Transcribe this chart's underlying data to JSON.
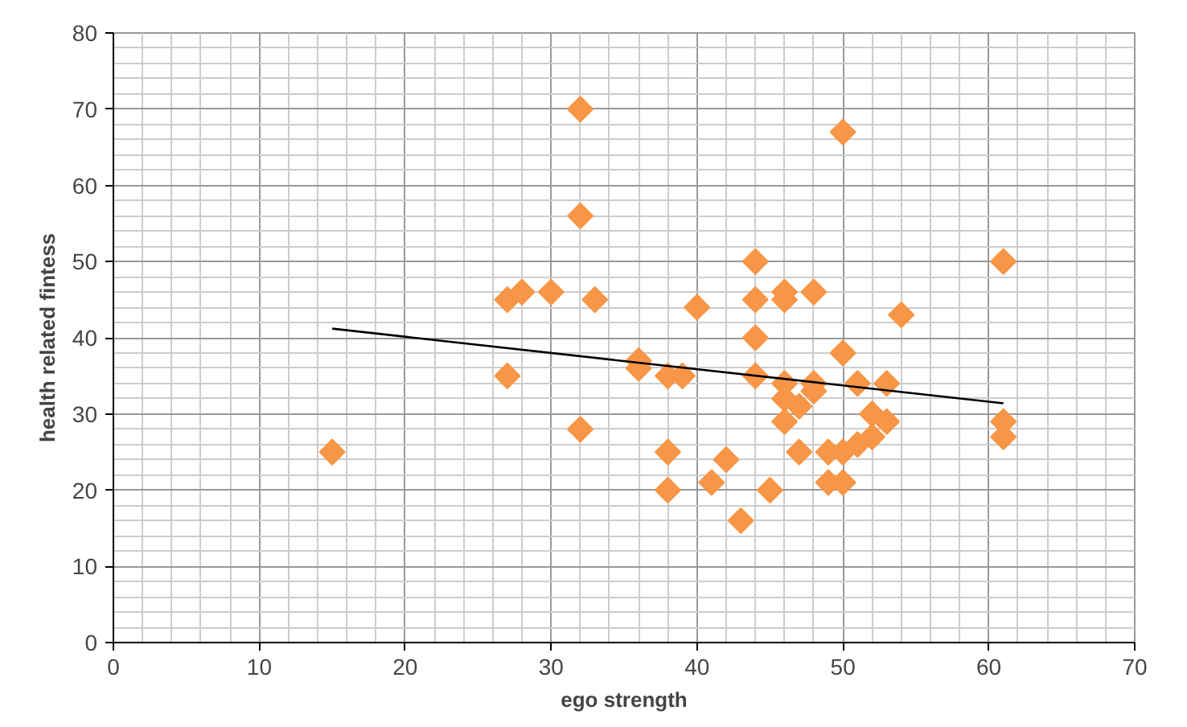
{
  "chart_data": {
    "type": "scatter",
    "xlabel": "ego strength",
    "ylabel": "health related fintess",
    "xlim": [
      0,
      70
    ],
    "ylim": [
      0,
      80
    ],
    "xticks": [
      0,
      10,
      20,
      30,
      40,
      50,
      60,
      70
    ],
    "yticks": [
      0,
      10,
      20,
      30,
      40,
      50,
      60,
      70,
      80
    ],
    "grid": true,
    "series": [
      {
        "color": "#f79646",
        "marker": "diamond",
        "x": [
          15,
          27,
          27,
          28,
          30,
          32,
          32,
          32,
          33,
          36,
          36,
          38,
          38,
          38,
          39,
          40,
          41,
          42,
          43,
          44,
          44,
          44,
          44,
          45,
          46,
          46,
          46,
          46,
          46,
          47,
          47,
          48,
          48,
          48,
          49,
          49,
          50,
          50,
          50,
          50,
          51,
          51,
          52,
          52,
          53,
          53,
          54,
          61,
          61,
          61
        ],
        "values": [
          25,
          45,
          35,
          46,
          46,
          70,
          56,
          28,
          45,
          37,
          36,
          35,
          25,
          20,
          35,
          44,
          21,
          24,
          16,
          50,
          45,
          40,
          35,
          20,
          46,
          45,
          34,
          32,
          29,
          31,
          25,
          46,
          34,
          33,
          25,
          21,
          67,
          38,
          25,
          21,
          34,
          26,
          30,
          27,
          34,
          29,
          43,
          50,
          29,
          27
        ]
      },
      {
        "type": "line",
        "color": "#000000",
        "marker": "none",
        "x": [
          15,
          61
        ],
        "values": [
          41.2,
          31.4
        ]
      }
    ]
  }
}
